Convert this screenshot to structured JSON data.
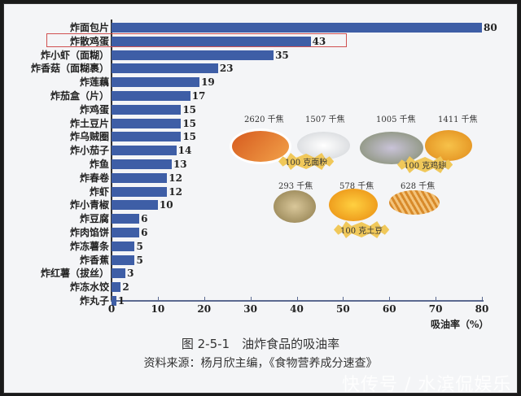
{
  "chart_data": {
    "type": "bar",
    "orientation": "horizontal",
    "title": "图 2-5-1　油炸食品的吸油率",
    "subtitle": "资料来源：杨月欣主编，《食物营养成分速查》",
    "xlabel": "吸油率（%）",
    "ylabel": "",
    "xlim": [
      0,
      80
    ],
    "xticks": [
      "0",
      "10",
      "20",
      "30",
      "40",
      "50",
      "60",
      "70",
      "80"
    ],
    "grid": false,
    "legend": null,
    "categories": [
      "炸面包片",
      "炸散鸡蛋",
      "炸小虾（面糊）",
      "炸香菇（面糊裹）",
      "炸莲藕",
      "炸茄盒（片）",
      "炸鸡蛋",
      "炸土豆片",
      "炸乌贼圈",
      "炸小茄子",
      "炸鱼",
      "炸春卷",
      "炸虾",
      "炸小青椒",
      "炸豆腐",
      "炸肉馅饼",
      "炸冻薯条",
      "炸香蕉",
      "炸红薯（拔丝）",
      "炸冻水饺",
      "炸丸子"
    ],
    "values": [
      80,
      43,
      35,
      23,
      19,
      17,
      15,
      15,
      15,
      14,
      13,
      12,
      12,
      10,
      6,
      6,
      5,
      5,
      3,
      2,
      1
    ],
    "highlighted_category": "炸散鸡蛋",
    "bar_color": "#3e5ea6",
    "highlight_color": "#d05050",
    "annotations": {
      "inset_groups": [
        {
          "label": "100 克面粉",
          "items": [
            {
              "kcal": "2620 千焦"
            },
            {
              "kcal": "1507 千焦"
            }
          ]
        },
        {
          "label": "100 克鸡翅",
          "items": [
            {
              "kcal": "1005 千焦"
            },
            {
              "kcal": "1411 千焦"
            }
          ]
        },
        {
          "label": "100 克土豆",
          "items": [
            {
              "kcal": "293 千焦"
            },
            {
              "kcal": "578 千焦"
            },
            {
              "kcal": "628 千焦"
            }
          ]
        }
      ]
    }
  },
  "watermark": "快传号 / 水滨侃娱乐"
}
